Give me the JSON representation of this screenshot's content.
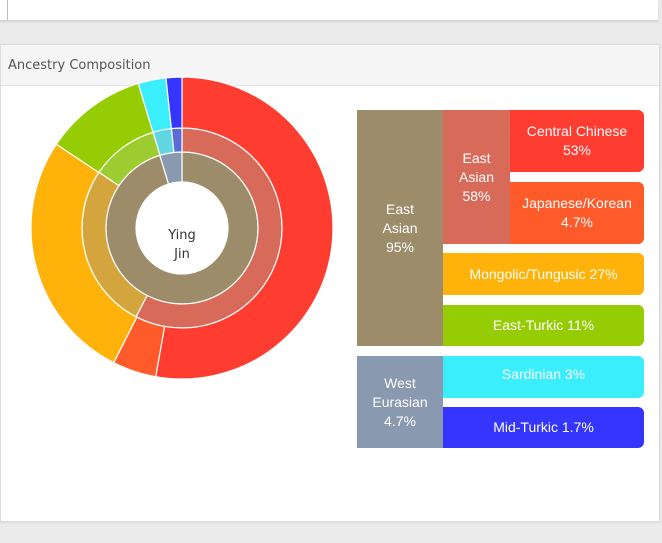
{
  "panel": {
    "title": "Ancestry Composition"
  },
  "center": {
    "name_line1": "Ying",
    "name_line2": "Jin"
  },
  "colors": {
    "east_asian_region": "#9d8c6a",
    "east_asian_sub": "#d86a5a",
    "central_chinese": "#ff3c30",
    "japanese_korean": "#ff5b2a",
    "mongolic_tungusic": "#ffb20a",
    "east_turkic": "#95cc04",
    "west_eurasian_region": "#8999af",
    "sardinian": "#3beefc",
    "mid_turkic": "#3535ff"
  },
  "legend": {
    "east_asian_region": {
      "name": "East Asian",
      "pct": "95%"
    },
    "east_asian_sub": {
      "name": "East Asian",
      "pct": "58%"
    },
    "central_chinese": {
      "name": "Central Chinese",
      "pct": "53%"
    },
    "japanese_korean": {
      "name": "Japanese/Korean",
      "pct": "4.7%"
    },
    "mongolic_tungusic": {
      "label": "Mongolic/Tungusic 27%"
    },
    "east_turkic": {
      "label": "East-Turkic 11%"
    },
    "west_eurasian_region": {
      "name": "West Eurasian",
      "pct": "4.7%"
    },
    "sardinian": {
      "label": "Sardinian 3%"
    },
    "mid_turkic": {
      "label": "Mid-Turkic 1.7%"
    }
  },
  "chart_data": {
    "type": "pie",
    "center_label": "Ying Jin",
    "rings": [
      {
        "level": "region",
        "slices": [
          {
            "name": "East Asian",
            "value": 95,
            "color": "#9d8c6a"
          },
          {
            "name": "West Eurasian",
            "value": 4.7,
            "color": "#8999af"
          }
        ]
      },
      {
        "level": "subregion",
        "slices": [
          {
            "name": "East Asian",
            "value": 58,
            "color": "#d86a5a"
          },
          {
            "name": "Mongolic/Tungusic",
            "value": 27,
            "color": "#d4a53c"
          },
          {
            "name": "East-Turkic",
            "value": 11,
            "color": "#9ccc30"
          },
          {
            "name": "Sardinian",
            "value": 3,
            "color": "#5fd6e0"
          },
          {
            "name": "Mid-Turkic",
            "value": 1.7,
            "color": "#5b6bd8"
          }
        ]
      },
      {
        "level": "population",
        "slices": [
          {
            "name": "Central Chinese",
            "value": 53,
            "color": "#ff3c30"
          },
          {
            "name": "Japanese/Korean",
            "value": 4.7,
            "color": "#ff5b2a"
          },
          {
            "name": "Mongolic/Tungusic",
            "value": 27,
            "color": "#ffb20a"
          },
          {
            "name": "East-Turkic",
            "value": 11,
            "color": "#95cc04"
          },
          {
            "name": "Sardinian",
            "value": 3,
            "color": "#3beefc"
          },
          {
            "name": "Mid-Turkic",
            "value": 1.7,
            "color": "#3535ff"
          }
        ]
      }
    ]
  }
}
